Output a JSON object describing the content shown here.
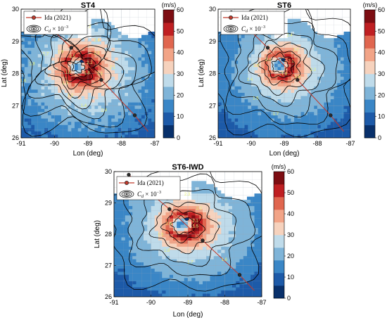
{
  "chart_data": [
    {
      "type": "heatmap",
      "title": "ST4",
      "xlabel": "Lon (deg)",
      "ylabel": "Lat (deg)",
      "xlim": [
        -91,
        -87
      ],
      "ylim": [
        26,
        30
      ],
      "xticks": [
        -91,
        -90,
        -89,
        -88,
        -87
      ],
      "yticks": [
        26,
        27,
        28,
        29,
        30
      ],
      "grid": true,
      "legend_location": "top-left",
      "colorbar": {
        "label": "(m/s)",
        "ticks": [
          0,
          10,
          20,
          30,
          40,
          50,
          60
        ],
        "range": [
          0,
          60
        ]
      },
      "contour_labels": [
        "2.2",
        "2.3",
        "2.6",
        "2.7",
        "2.8",
        "2.5",
        "1.9",
        "1.7",
        "1.8",
        "1.6",
        "1.5",
        "1.3",
        "1.2",
        "1.4",
        "2.4",
        "1.8",
        "2.3",
        "2.1"
      ],
      "track_points": [
        {
          "lon": -90.6,
          "lat": 29.9
        },
        {
          "lon": -89.5,
          "lat": 28.8
        },
        {
          "lon": -88.6,
          "lat": 27.8
        },
        {
          "lon": -87.6,
          "lat": 26.7
        },
        {
          "lon": -87.2,
          "lat": 26.2
        }
      ],
      "contour_levels": [
        1.2,
        1.4,
        1.6,
        1.8,
        2.0,
        2.2,
        2.4,
        2.6,
        2.8
      ]
    },
    {
      "type": "heatmap",
      "title": "ST6",
      "xlabel": "Lon (deg)",
      "ylabel": "Lat (deg)",
      "xlim": [
        -91,
        -87
      ],
      "ylim": [
        26,
        30
      ],
      "xticks": [
        -91,
        -90,
        -89,
        -88,
        -87
      ],
      "yticks": [
        26,
        27,
        28,
        29,
        30
      ],
      "grid": true,
      "legend_location": "top-left",
      "colorbar": {
        "label": "(m/s)",
        "ticks": [
          0,
          10,
          20,
          30,
          40,
          50,
          60
        ],
        "range": [
          0,
          60
        ]
      },
      "contour_labels": [
        "2.1",
        "2.2",
        "2.4",
        "2.5",
        "2.3",
        "2.6",
        "2.9",
        "1.4",
        "1.5",
        "1.7",
        "1.8",
        "1.6",
        "2.2"
      ],
      "track_points": [
        {
          "lon": -90.6,
          "lat": 29.9
        },
        {
          "lon": -89.5,
          "lat": 28.8
        },
        {
          "lon": -88.6,
          "lat": 27.8
        },
        {
          "lon": -87.6,
          "lat": 26.7
        },
        {
          "lon": -87.2,
          "lat": 26.2
        }
      ],
      "contour_levels": [
        1.4,
        1.6,
        1.8,
        2.0,
        2.2,
        2.4,
        2.6,
        2.8
      ]
    },
    {
      "type": "heatmap",
      "title": "ST6-IWD",
      "xlabel": "Lon (deg)",
      "ylabel": "Lat (deg)",
      "xlim": [
        -91,
        -87
      ],
      "ylim": [
        26,
        30
      ],
      "xticks": [
        -91,
        -90,
        -89,
        -88,
        -87
      ],
      "yticks": [
        26,
        27,
        28,
        29,
        30
      ],
      "grid": true,
      "legend_location": "top-left",
      "colorbar": {
        "label": "(m/s)",
        "ticks": [
          0,
          10,
          20,
          30,
          40,
          50,
          60
        ],
        "range": [
          0,
          60
        ]
      },
      "contour_labels": [
        "2.1",
        "2.2",
        "2.3",
        "2.4",
        "2.0",
        "2.6",
        "1.5",
        "1.8",
        "1.7",
        "1.6",
        "1.5"
      ],
      "track_points": [
        {
          "lon": -90.6,
          "lat": 29.9
        },
        {
          "lon": -89.5,
          "lat": 28.8
        },
        {
          "lon": -88.6,
          "lat": 27.8
        },
        {
          "lon": -87.6,
          "lat": 26.7
        },
        {
          "lon": -87.2,
          "lat": 26.2
        }
      ],
      "contour_levels": [
        1.5,
        1.7,
        1.9,
        2.1,
        2.3,
        2.5
      ]
    }
  ],
  "legend": {
    "track_label": "Ida (2021)",
    "cd_label_main": "C",
    "cd_label_sub": "d",
    "cd_label_rest": " × 10",
    "cd_label_exp": "−3"
  },
  "colors": {
    "track": "#c0392b",
    "track_marker": "#2b2b2b",
    "contour": "#000000",
    "contour_label": "#e8f27a",
    "grid": "#9aa7b4"
  }
}
